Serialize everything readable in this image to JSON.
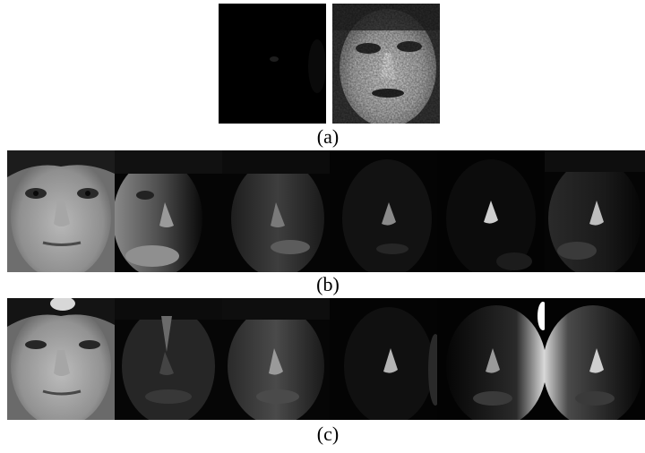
{
  "captions": {
    "a": "(a)",
    "b": "(b)",
    "c": "(c)"
  },
  "colors": {
    "background": "#ffffff",
    "image_black": "#000000",
    "caption_text": "#000000"
  },
  "rows": {
    "a": {
      "tile_count": 2
    },
    "b": {
      "tile_count": 6
    },
    "c": {
      "tile_count": 6
    }
  }
}
